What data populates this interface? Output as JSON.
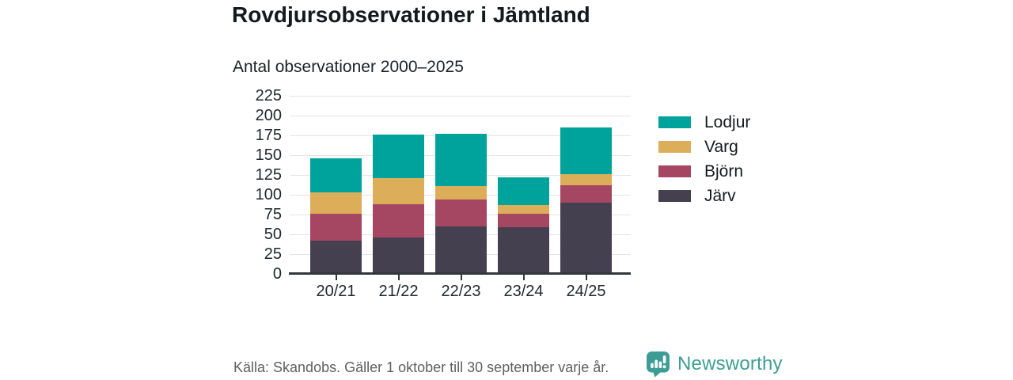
{
  "header": {
    "title": "Rovdjursobservationer i Jämtland",
    "subtitle": "Antal observationer 2000–2025"
  },
  "chart_data": {
    "type": "bar",
    "stacked": true,
    "title": "Rovdjursobservationer i Jämtland",
    "subtitle": "Antal observationer 2000–2025",
    "categories": [
      "20/21",
      "21/22",
      "22/23",
      "23/24",
      "24/25"
    ],
    "series": [
      {
        "name": "Järv",
        "color": "#454050",
        "values": [
          42,
          46,
          60,
          59,
          90
        ]
      },
      {
        "name": "Björn",
        "color": "#a54663",
        "values": [
          34,
          42,
          34,
          17,
          22
        ]
      },
      {
        "name": "Varg",
        "color": "#dcae5a",
        "values": [
          27,
          33,
          17,
          11,
          14
        ]
      },
      {
        "name": "Lodjur",
        "color": "#00a39b",
        "values": [
          43,
          55,
          66,
          35,
          59
        ]
      }
    ],
    "stack_totals": [
      146,
      176,
      177,
      122,
      185
    ],
    "legend_order": [
      "Lodjur",
      "Varg",
      "Björn",
      "Järv"
    ],
    "legend_position": "right",
    "yticks": [
      0,
      25,
      50,
      75,
      100,
      125,
      150,
      175,
      200,
      225
    ],
    "ylim": [
      0,
      225
    ],
    "xlabel": "",
    "ylabel": "",
    "grid": "horizontal"
  },
  "footer": {
    "source": "Källa: Skandobs. Gäller 1 oktober till 30 september varje år.",
    "brand": "Newsworthy",
    "brand_icon": "newsworthy-logo-icon",
    "brand_color": "#3d9d94"
  }
}
